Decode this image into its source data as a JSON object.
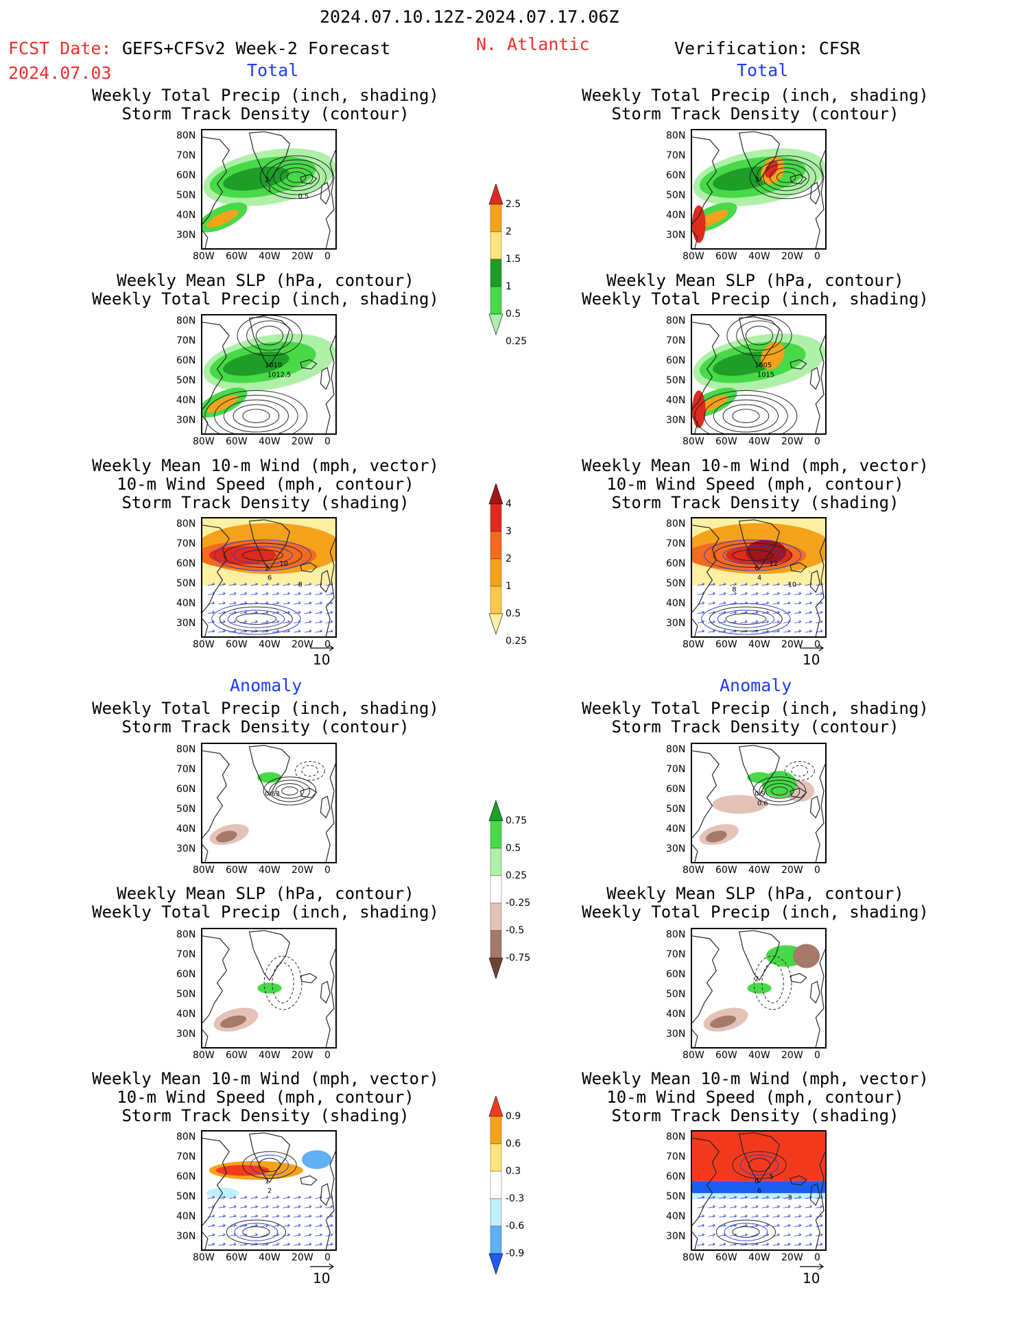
{
  "header": {
    "time_range": "2024.07.10.12Z-2024.07.17.06Z",
    "fcst_date_label": "FCST Date:",
    "fcst_date": "2024.07.03",
    "forecast_name": "GEFS+CFSv2 Week-2 Forecast",
    "region": "N. Atlantic",
    "verification": "Verification: CFSR"
  },
  "sections": {
    "total": "Total",
    "anomaly": "Anomaly"
  },
  "panel_titles": {
    "precip_storm": [
      "Weekly Total Precip (inch, shading)",
      "Storm Track Density (contour)"
    ],
    "slp_precip": [
      "Weekly Mean SLP (hPa, contour)",
      "Weekly Total Precip (inch, shading)"
    ],
    "wind_storm": [
      "Weekly Mean 10-m Wind (mph, vector)",
      "10-m Wind Speed (mph, contour)",
      "Storm Track Density (shading)"
    ]
  },
  "axes": {
    "lat": [
      "80N",
      "70N",
      "60N",
      "50N",
      "40N",
      "30N"
    ],
    "lon": [
      "80W",
      "60W",
      "40W",
      "20W",
      "0"
    ]
  },
  "vector_ref": "10",
  "contour_labels": {
    "fc_precip": [
      "2",
      "1",
      "0.5"
    ],
    "obs_precip": [
      "3"
    ],
    "fc_slp": [
      "1010",
      "1012.5"
    ],
    "obs_slp": [
      "1005",
      "1015"
    ],
    "fc_wind": [
      "2",
      "6",
      "8",
      "10"
    ],
    "obs_wind": [
      "6",
      "4",
      "10",
      "12",
      "8"
    ],
    "fc_precip_anom": [
      "0.63"
    ],
    "obs_precip_anom": [
      "0.9",
      "0.6"
    ],
    "obs_slp_anom": [
      "2"
    ],
    "fc_wind_anom": [
      "1",
      "2"
    ],
    "obs_wind_anom": [
      "0",
      "6",
      "3",
      "5"
    ]
  },
  "colorbars": {
    "precip_total": {
      "labels": [
        "2.5",
        "2",
        "1.5",
        "1",
        "0.5",
        "0.25"
      ],
      "colors": [
        "#e02a1e",
        "#f5a21b",
        "#fde47a",
        "#1e9e27",
        "#48d948",
        "#aef0a8"
      ]
    },
    "storm_total": {
      "labels": [
        "4",
        "3",
        "2",
        "1",
        "0.5",
        "0.25"
      ],
      "colors": [
        "#a3141b",
        "#e02a1e",
        "#f46a1f",
        "#f5a21b",
        "#fbc84c",
        "#fef0a3"
      ]
    },
    "precip_anom": {
      "labels": [
        "0.75",
        "0.5",
        "0.25",
        "-0.25",
        "-0.5",
        "-0.75"
      ],
      "colors": [
        "#1e9e27",
        "#48d948",
        "#aef0a8",
        "#ffffff",
        "#e4c2b8",
        "#a57a6a",
        "#6b4438"
      ]
    },
    "storm_anom": {
      "labels": [
        "0.9",
        "0.6",
        "0.3",
        "-0.3",
        "-0.6",
        "-0.9"
      ],
      "colors": [
        "#f43a1e",
        "#f5a21b",
        "#fde47a",
        "#ffffff",
        "#bfeffa",
        "#5fb0f5",
        "#1c5ef2"
      ]
    }
  },
  "colors": {
    "title_red": "#e8302a",
    "section_blue": "#1b3bff"
  }
}
